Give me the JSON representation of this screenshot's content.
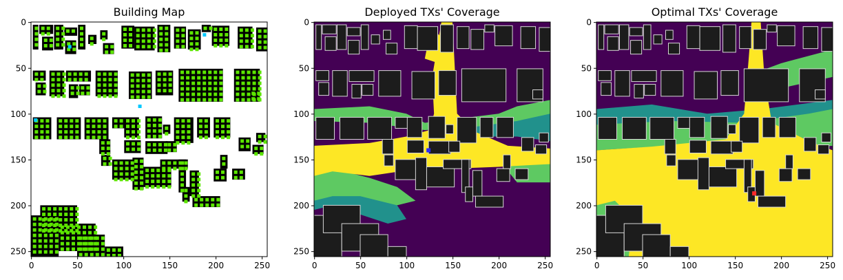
{
  "chart_data": [
    {
      "type": "heatmap",
      "title": "Building Map",
      "xlim": [
        0,
        255
      ],
      "ylim": [
        255,
        0
      ],
      "xticks": [
        0,
        50,
        100,
        150,
        200,
        250
      ],
      "yticks": [
        0,
        50,
        100,
        150,
        200,
        250
      ],
      "grid": false,
      "colors": {
        "background": "#ffffff",
        "building": "#000000",
        "candidate": "#5ce600",
        "deployed": "#00c8ff"
      },
      "deployed_tx": [
        [
          42,
          27
        ],
        [
          188,
          14
        ],
        [
          118,
          92
        ],
        [
          5,
          107
        ]
      ]
    },
    {
      "type": "heatmap",
      "title": "Deployed TXs' Coverage",
      "xlim": [
        0,
        255
      ],
      "ylim": [
        255,
        0
      ],
      "xticks": [
        0,
        50,
        100,
        150,
        200,
        250
      ],
      "yticks": [
        0,
        50,
        100,
        150,
        200,
        250
      ],
      "grid": false,
      "colors": {
        "no_coverage": "#440154",
        "low": "#21918c",
        "mid": "#5ec962",
        "high": "#fde725",
        "building": "#1c1c1c",
        "tx": "#2a2aff"
      },
      "tx_marker": [
        124,
        140
      ]
    },
    {
      "type": "heatmap",
      "title": "Optimal TXs' Coverage",
      "xlim": [
        0,
        255
      ],
      "ylim": [
        255,
        0
      ],
      "xticks": [
        0,
        50,
        100,
        150,
        200,
        250
      ],
      "yticks": [
        0,
        50,
        100,
        150,
        200,
        250
      ],
      "grid": false,
      "colors": {
        "no_coverage": "#440154",
        "low": "#21918c",
        "mid": "#5ec962",
        "high": "#fde725",
        "building": "#1c1c1c",
        "tx": "#ff2a2a"
      },
      "tx_marker": [
        171,
        187
      ]
    }
  ]
}
